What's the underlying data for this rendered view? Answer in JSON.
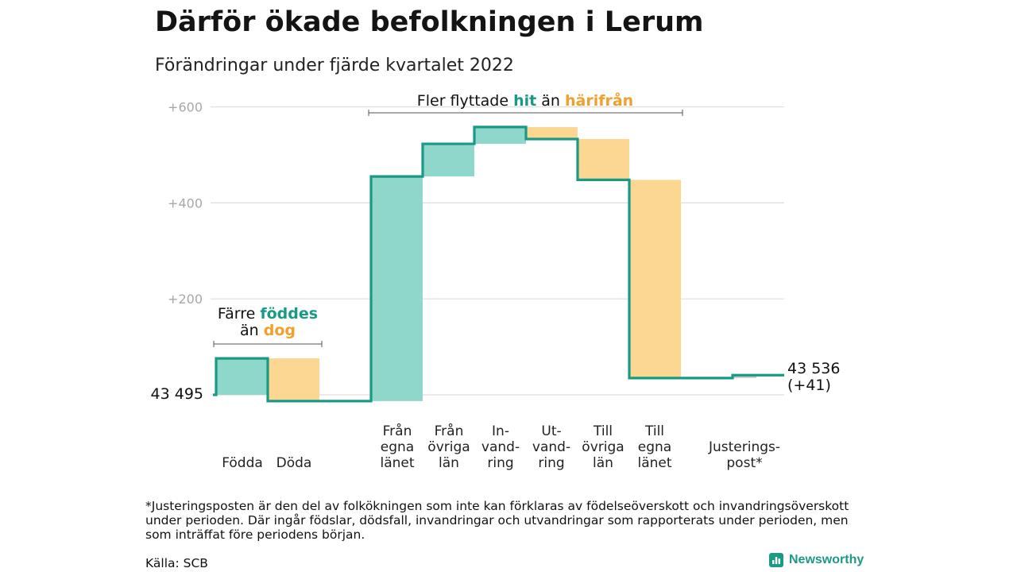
{
  "header": {
    "title": "Därför ökade befolkningen i Lerum",
    "subtitle": "Förändringar under fjärde kvartalet 2022"
  },
  "chart_data": {
    "type": "bar",
    "subtype": "waterfall",
    "y_ticks": [
      "+600",
      "+400",
      "+200"
    ],
    "ylim": [
      -15,
      600
    ],
    "grid": true,
    "start_label": "43 495",
    "end_label_line1": "43 536",
    "end_label_line2": "(+41)",
    "steps": [
      {
        "key": "fodda",
        "label": [
          "Födda"
        ],
        "change": 76,
        "kind": "increase"
      },
      {
        "key": "doda",
        "label": [
          "Döda"
        ],
        "change": -89,
        "kind": "decrease"
      },
      {
        "key": "fran_egna",
        "label": [
          "Från",
          "egna",
          "länet"
        ],
        "change": 468,
        "kind": "increase"
      },
      {
        "key": "fran_ovriga",
        "label": [
          "Från",
          "övriga",
          "län"
        ],
        "change": 68,
        "kind": "increase"
      },
      {
        "key": "invandring",
        "label": [
          "In-",
          "vand-",
          "ring"
        ],
        "change": 35,
        "kind": "increase"
      },
      {
        "key": "utvandring",
        "label": [
          "Ut-",
          "vand-",
          "ring"
        ],
        "change": -25,
        "kind": "decrease"
      },
      {
        "key": "till_ovriga",
        "label": [
          "Till",
          "övriga",
          "län"
        ],
        "change": -85,
        "kind": "decrease"
      },
      {
        "key": "till_egna",
        "label": [
          "Till",
          "egna",
          "länet"
        ],
        "change": -413,
        "kind": "decrease"
      },
      {
        "key": "justering",
        "label": [
          "Justerings-",
          "post*"
        ],
        "change": 6,
        "kind": "adjustment"
      }
    ],
    "annotations": {
      "births": {
        "line1": "Färre ",
        "highlight1": "föddes",
        "line2": "än ",
        "highlight2": "dog"
      },
      "migration": {
        "text": "Fler flyttade ",
        "highlight1": "hit",
        "middle": " än ",
        "highlight2": "härifrån"
      }
    },
    "colors": {
      "increase": "#8fd6cb",
      "decrease": "#fbd791",
      "adjustment": "#c8c8c8",
      "line": "#1a9a86",
      "grid": "#dddddd",
      "highlight_green": "#1a9a86",
      "highlight_orange": "#f0a02c"
    }
  },
  "footer": {
    "footnote": "*Justeringsposten är den del av folkökningen som inte kan förklaras av födelseöverskott och invandringsöverskott under perioden. Där ingår födslar, dödsfall, invandringar och utvandringar som rapporterats under perioden, men som inträffat före periodens början.",
    "source": "Källa: SCB",
    "brand": "Newsworthy",
    "brand_icon": "newsworthy-bar-chart-icon"
  }
}
